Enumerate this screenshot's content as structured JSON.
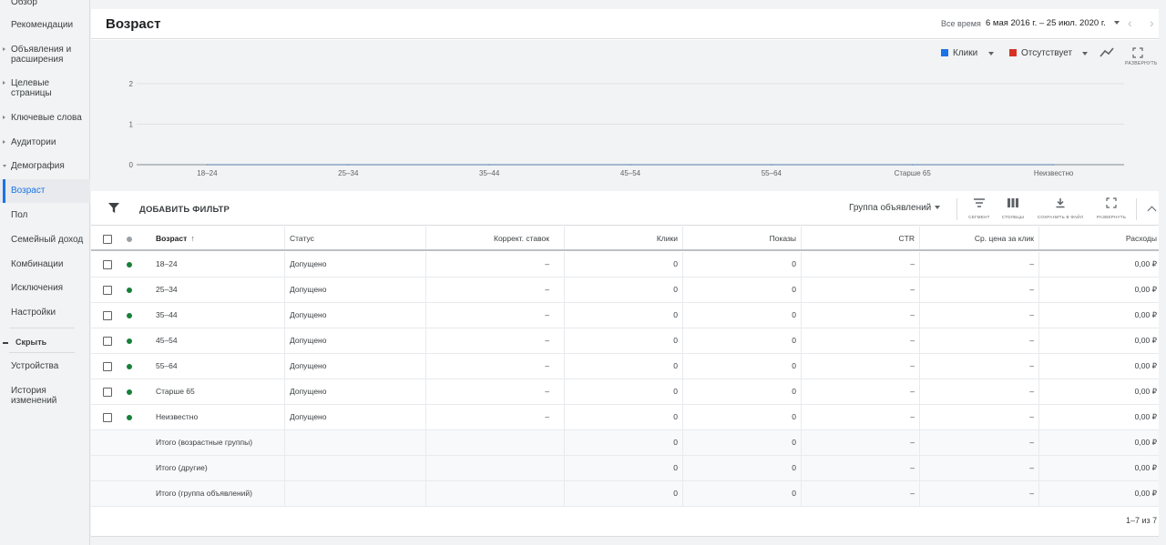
{
  "sidebar": {
    "items": [
      {
        "label": "Обзор"
      },
      {
        "label": "Рекомендации"
      },
      {
        "label": "Объявления и расширения"
      },
      {
        "label": "Целевые страницы"
      },
      {
        "label": "Ключевые слова"
      },
      {
        "label": "Аудитории"
      },
      {
        "label": "Демография"
      },
      {
        "label": "Возраст"
      },
      {
        "label": "Пол"
      },
      {
        "label": "Семейный доход"
      },
      {
        "label": "Комбинации"
      },
      {
        "label": "Исключения"
      },
      {
        "label": "Настройки"
      },
      {
        "label": "Скрыть"
      },
      {
        "label": "Устройства"
      },
      {
        "label": "История изменений"
      }
    ]
  },
  "header": {
    "title": "Возраст",
    "date_label": "Все время",
    "date_range": "6 мая 2016 г. – 25 июл. 2020 г."
  },
  "chart_controls": {
    "metric1": {
      "label": "Клики",
      "color": "#1a73e8"
    },
    "metric2": {
      "label": "Отсутствует",
      "color": "#d93025"
    },
    "expand_label": "РАЗВЕРНУТЬ"
  },
  "chart_data": {
    "type": "line",
    "categories": [
      "18–24",
      "25–34",
      "35–44",
      "45–54",
      "55–64",
      "Старше 65",
      "Неизвестно"
    ],
    "y_ticks": [
      "0",
      "1",
      "2"
    ],
    "ylim": [
      0,
      2
    ],
    "series": [
      {
        "name": "Клики",
        "values": [
          0,
          0,
          0,
          0,
          0,
          0,
          0
        ]
      }
    ],
    "grid": true
  },
  "toolbar": {
    "add_filter": "ДОБАВИТЬ ФИЛЬТР",
    "group_select": "Группа объявлений",
    "segment": "СЕГМЕНТ",
    "columns": "СТОЛБЦЫ",
    "save": "СОХРАНИТЬ В ФАЙЛ",
    "expand": "РАЗВЕРНУТЬ"
  },
  "table": {
    "headers": {
      "age": "Возраст",
      "status": "Статус",
      "bid": "Коррект. ставок",
      "clicks": "Клики",
      "impr": "Показы",
      "ctr": "CTR",
      "cpc": "Ср. цена за клик",
      "cost": "Расходы"
    },
    "rows": [
      {
        "age": "18–24",
        "status": "Допущено",
        "bid": "–",
        "clicks": "0",
        "impr": "0",
        "ctr": "–",
        "cpc": "–",
        "cost": "0,00 ₽"
      },
      {
        "age": "25–34",
        "status": "Допущено",
        "bid": "–",
        "clicks": "0",
        "impr": "0",
        "ctr": "–",
        "cpc": "–",
        "cost": "0,00 ₽"
      },
      {
        "age": "35–44",
        "status": "Допущено",
        "bid": "–",
        "clicks": "0",
        "impr": "0",
        "ctr": "–",
        "cpc": "–",
        "cost": "0,00 ₽"
      },
      {
        "age": "45–54",
        "status": "Допущено",
        "bid": "–",
        "clicks": "0",
        "impr": "0",
        "ctr": "–",
        "cpc": "–",
        "cost": "0,00 ₽"
      },
      {
        "age": "55–64",
        "status": "Допущено",
        "bid": "–",
        "clicks": "0",
        "impr": "0",
        "ctr": "–",
        "cpc": "–",
        "cost": "0,00 ₽"
      },
      {
        "age": "Старше 65",
        "status": "Допущено",
        "bid": "–",
        "clicks": "0",
        "impr": "0",
        "ctr": "–",
        "cpc": "–",
        "cost": "0,00 ₽"
      },
      {
        "age": "Неизвестно",
        "status": "Допущено",
        "bid": "–",
        "clicks": "0",
        "impr": "0",
        "ctr": "–",
        "cpc": "–",
        "cost": "0,00 ₽"
      }
    ],
    "totals": [
      {
        "label": "Итого (возрастные группы)",
        "clicks": "0",
        "impr": "0",
        "ctr": "–",
        "cpc": "–",
        "cost": "0,00 ₽"
      },
      {
        "label": "Итого (другие)",
        "clicks": "0",
        "impr": "0",
        "ctr": "–",
        "cpc": "–",
        "cost": "0,00 ₽"
      },
      {
        "label": "Итого (группа объявлений)",
        "clicks": "0",
        "impr": "0",
        "ctr": "–",
        "cpc": "–",
        "cost": "0,00 ₽"
      }
    ],
    "status_color": "#188038",
    "pagination": "1–7 из 7"
  }
}
